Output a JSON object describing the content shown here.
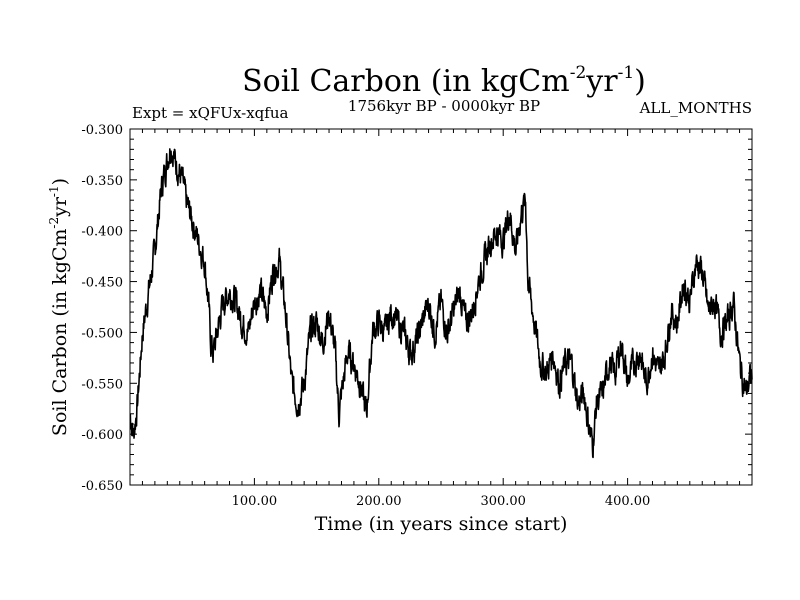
{
  "chart_data": {
    "type": "line",
    "title": {
      "text": "Soil Carbon (in kgCm",
      "sup1": "-2",
      "mid": "yr",
      "sup2": "-1",
      "end": ")"
    },
    "subtitle_left": "Expt = xQFUx-xqfua",
    "subtitle_center": "1756kyr BP - 0000kyr BP",
    "subtitle_right": "ALL_MONTHS",
    "xlabel": "Time (in years since start)",
    "ylabel": {
      "text": "Soil Carbon (in kgCm",
      "sup1": "-2",
      "mid": "yr",
      "sup2": "-1",
      "end": ")"
    },
    "xlim": [
      0,
      500
    ],
    "ylim": [
      -0.65,
      -0.3
    ],
    "x_ticks": [
      100,
      200,
      300,
      400
    ],
    "x_tick_labels": [
      "100.00",
      "200.00",
      "300.00",
      "400.00"
    ],
    "y_ticks": [
      -0.3,
      -0.35,
      -0.4,
      -0.45,
      -0.5,
      -0.55,
      -0.6,
      -0.65
    ],
    "y_tick_labels": [
      "-0.300",
      "-0.350",
      "-0.400",
      "-0.450",
      "-0.500",
      "-0.550",
      "-0.600",
      "-0.650"
    ],
    "series": [
      {
        "name": "Soil Carbon",
        "color": "#000000",
        "x": [
          0,
          3,
          6,
          10,
          15,
          20,
          25,
          30,
          33,
          36,
          39,
          42,
          45,
          50,
          55,
          60,
          63,
          65,
          67,
          70,
          75,
          80,
          85,
          90,
          95,
          100,
          105,
          110,
          115,
          120,
          125,
          130,
          135,
          140,
          145,
          150,
          155,
          160,
          165,
          168,
          170,
          175,
          180,
          185,
          190,
          195,
          200,
          205,
          210,
          215,
          220,
          225,
          230,
          235,
          240,
          245,
          250,
          255,
          260,
          265,
          270,
          275,
          280,
          285,
          290,
          295,
          300,
          305,
          310,
          315,
          318,
          320,
          325,
          330,
          335,
          340,
          345,
          350,
          355,
          360,
          365,
          370,
          372,
          375,
          380,
          385,
          390,
          395,
          400,
          405,
          410,
          415,
          420,
          425,
          430,
          435,
          440,
          445,
          450,
          455,
          460,
          465,
          470,
          475,
          480,
          485,
          490,
          495,
          500
        ],
        "values": [
          -0.58,
          -0.6,
          -0.57,
          -0.5,
          -0.46,
          -0.42,
          -0.36,
          -0.33,
          -0.315,
          -0.33,
          -0.34,
          -0.35,
          -0.37,
          -0.39,
          -0.41,
          -0.43,
          -0.47,
          -0.51,
          -0.52,
          -0.5,
          -0.47,
          -0.46,
          -0.47,
          -0.49,
          -0.5,
          -0.47,
          -0.46,
          -0.48,
          -0.44,
          -0.43,
          -0.48,
          -0.55,
          -0.57,
          -0.55,
          -0.5,
          -0.49,
          -0.51,
          -0.48,
          -0.52,
          -0.58,
          -0.56,
          -0.52,
          -0.53,
          -0.55,
          -0.58,
          -0.5,
          -0.49,
          -0.5,
          -0.48,
          -0.49,
          -0.5,
          -0.52,
          -0.51,
          -0.49,
          -0.47,
          -0.5,
          -0.47,
          -0.5,
          -0.48,
          -0.46,
          -0.49,
          -0.48,
          -0.45,
          -0.43,
          -0.41,
          -0.4,
          -0.41,
          -0.38,
          -0.42,
          -0.38,
          -0.37,
          -0.45,
          -0.49,
          -0.53,
          -0.54,
          -0.52,
          -0.55,
          -0.53,
          -0.53,
          -0.57,
          -0.56,
          -0.6,
          -0.61,
          -0.57,
          -0.56,
          -0.53,
          -0.54,
          -0.51,
          -0.55,
          -0.53,
          -0.52,
          -0.55,
          -0.52,
          -0.54,
          -0.52,
          -0.48,
          -0.49,
          -0.45,
          -0.47,
          -0.43,
          -0.44,
          -0.48,
          -0.47,
          -0.5,
          -0.49,
          -0.47,
          -0.53,
          -0.56,
          -0.54
        ]
      }
    ]
  }
}
